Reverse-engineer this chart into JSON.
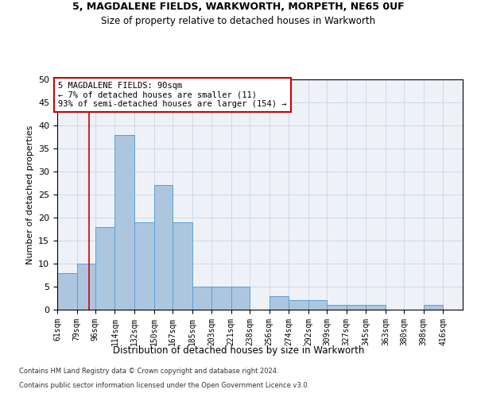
{
  "title1": "5, MAGDALENE FIELDS, WARKWORTH, MORPETH, NE65 0UF",
  "title2": "Size of property relative to detached houses in Warkworth",
  "xlabel": "Distribution of detached houses by size in Warkworth",
  "ylabel": "Number of detached properties",
  "bin_labels": [
    "61sqm",
    "79sqm",
    "96sqm",
    "114sqm",
    "132sqm",
    "150sqm",
    "167sqm",
    "185sqm",
    "203sqm",
    "221sqm",
    "238sqm",
    "256sqm",
    "274sqm",
    "292sqm",
    "309sqm",
    "327sqm",
    "345sqm",
    "363sqm",
    "380sqm",
    "398sqm",
    "416sqm"
  ],
  "bin_edges": [
    61,
    79,
    96,
    114,
    132,
    150,
    167,
    185,
    203,
    221,
    238,
    256,
    274,
    292,
    309,
    327,
    345,
    363,
    380,
    398,
    416
  ],
  "bar_values": [
    8,
    10,
    18,
    38,
    19,
    27,
    19,
    5,
    5,
    5,
    0,
    3,
    2,
    2,
    1,
    1,
    1,
    0,
    0,
    1,
    0
  ],
  "bar_color": "#adc6e0",
  "bar_edge_color": "#5a9fd4",
  "vline_x": 90,
  "vline_color": "#cc0000",
  "annotation_text": "5 MAGDALENE FIELDS: 90sqm\n← 7% of detached houses are smaller (11)\n93% of semi-detached houses are larger (154) →",
  "annotation_box_color": "#ffffff",
  "annotation_box_edge": "#cc0000",
  "ylim": [
    0,
    50
  ],
  "yticks": [
    0,
    5,
    10,
    15,
    20,
    25,
    30,
    35,
    40,
    45,
    50
  ],
  "grid_color": "#d0d8e8",
  "bg_color": "#eef2f8",
  "footer1": "Contains HM Land Registry data © Crown copyright and database right 2024.",
  "footer2": "Contains public sector information licensed under the Open Government Licence v3.0."
}
